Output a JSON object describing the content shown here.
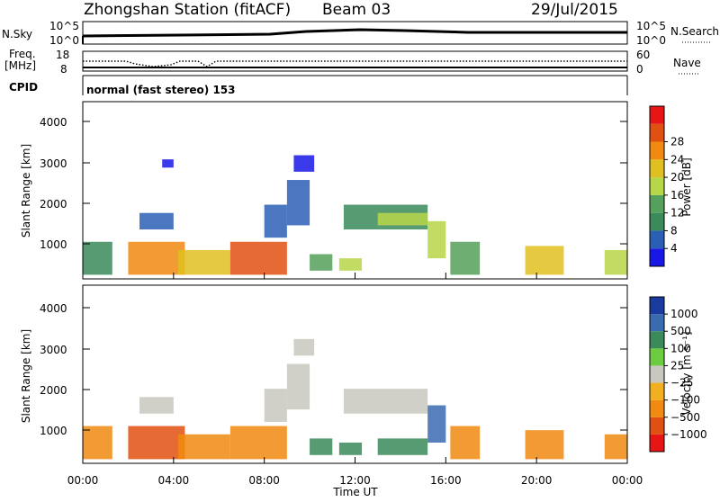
{
  "header": {
    "station": "Zhongshan Station (fitACF)",
    "beam": "Beam 03",
    "date": "29/Jul/2015",
    "cpid_label": "CPID",
    "cpid_text": "normal (fast stereo) 153"
  },
  "strips": {
    "nsky_label": "N.Sky",
    "nsky_ticks": [
      "10^5",
      "10^0"
    ],
    "nsearch_label": "N.Search",
    "nsearch_ticks": [
      "10^5",
      "10^0"
    ],
    "freq_label_1": "Freq.",
    "freq_label_2": "[MHz]",
    "freq_ticks": [
      "18",
      "8"
    ],
    "nave_label": "Nave",
    "nave_ticks": [
      "60",
      "0"
    ]
  },
  "colors": {
    "power": [
      "#1717e6",
      "#2a5fb5",
      "#3a8a5a",
      "#55a05a",
      "#b7d648",
      "#e0c020",
      "#f08a10",
      "#e05010",
      "#e61616"
    ],
    "velocity": [
      "#e61616",
      "#e05010",
      "#f08a10",
      "#f2b020",
      "#c8c8c0",
      "#6ccc40",
      "#3a8a5a",
      "#3a6ab0",
      "#1a3aa0"
    ]
  },
  "chart_data": [
    {
      "type": "heatmap",
      "panel": "power",
      "ylabel": "Slant Range [km]",
      "xlabel": "",
      "ylim": [
        200,
        4500
      ],
      "yticks": [
        "1000",
        "2000",
        "3000",
        "4000"
      ],
      "xlim": [
        "00:00",
        "24:00"
      ],
      "colorbar_label": "Power [dB]",
      "colorbar_ticks": [
        "4",
        "8",
        "12",
        "16",
        "20",
        "24",
        "28"
      ],
      "regions": [
        {
          "t0": 0.0,
          "t1": 1.3,
          "r0": 300,
          "r1": 1100,
          "level": 2
        },
        {
          "t0": 2.0,
          "t1": 4.5,
          "r0": 300,
          "r1": 1100,
          "level": 6
        },
        {
          "t0": 2.5,
          "t1": 4.0,
          "r0": 1400,
          "r1": 1800,
          "level": 1
        },
        {
          "t0": 3.5,
          "t1": 4.0,
          "r0": 2900,
          "r1": 3100,
          "level": 0
        },
        {
          "t0": 4.2,
          "t1": 6.5,
          "r0": 300,
          "r1": 900,
          "level": 5
        },
        {
          "t0": 6.5,
          "t1": 9.0,
          "r0": 300,
          "r1": 1100,
          "level": 7
        },
        {
          "t0": 8.0,
          "t1": 9.0,
          "r0": 1200,
          "r1": 2000,
          "level": 1
        },
        {
          "t0": 9.0,
          "t1": 10.0,
          "r0": 1500,
          "r1": 2600,
          "level": 1
        },
        {
          "t0": 9.3,
          "t1": 10.2,
          "r0": 2800,
          "r1": 3200,
          "level": 0
        },
        {
          "t0": 10.0,
          "t1": 11.0,
          "r0": 400,
          "r1": 800,
          "level": 3
        },
        {
          "t0": 11.3,
          "t1": 12.3,
          "r0": 400,
          "r1": 700,
          "level": 4
        },
        {
          "t0": 11.5,
          "t1": 15.2,
          "r0": 1400,
          "r1": 2000,
          "level": 2
        },
        {
          "t0": 13.0,
          "t1": 15.2,
          "r0": 1500,
          "r1": 1800,
          "level": 4
        },
        {
          "t0": 15.2,
          "t1": 16.0,
          "r0": 700,
          "r1": 1600,
          "level": 4
        },
        {
          "t0": 16.2,
          "t1": 17.5,
          "r0": 300,
          "r1": 1100,
          "level": 3
        },
        {
          "t0": 19.5,
          "t1": 21.2,
          "r0": 300,
          "r1": 1000,
          "level": 5
        },
        {
          "t0": 23.0,
          "t1": 24.0,
          "r0": 300,
          "r1": 900,
          "level": 4
        }
      ]
    },
    {
      "type": "heatmap",
      "panel": "velocity",
      "ylabel": "Slant Range [km]",
      "xlabel": "Time UT",
      "ylim": [
        200,
        4500
      ],
      "yticks": [
        "1000",
        "2000",
        "3000",
        "4000"
      ],
      "xlim": [
        "00:00",
        "24:00"
      ],
      "xticks": [
        "00:00",
        "04:00",
        "08:00",
        "12:00",
        "16:00",
        "20:00",
        "00:00"
      ],
      "colorbar_label": "Velocity [m s⁻¹]",
      "colorbar_ticks": [
        "1000",
        "500",
        "100",
        "25",
        "−25",
        "−100",
        "−500",
        "−1000"
      ],
      "regions": [
        {
          "t0": 0.0,
          "t1": 1.3,
          "r0": 300,
          "r1": 1100,
          "level": 2
        },
        {
          "t0": 2.0,
          "t1": 4.5,
          "r0": 300,
          "r1": 1100,
          "level": 1
        },
        {
          "t0": 2.5,
          "t1": 4.0,
          "r0": 1400,
          "r1": 1800,
          "level": 4
        },
        {
          "t0": 4.2,
          "t1": 6.5,
          "r0": 300,
          "r1": 900,
          "level": 2
        },
        {
          "t0": 6.5,
          "t1": 9.0,
          "r0": 300,
          "r1": 1100,
          "level": 2
        },
        {
          "t0": 8.0,
          "t1": 9.0,
          "r0": 1200,
          "r1": 2000,
          "level": 4
        },
        {
          "t0": 9.0,
          "t1": 10.0,
          "r0": 1500,
          "r1": 2600,
          "level": 4
        },
        {
          "t0": 9.3,
          "t1": 10.2,
          "r0": 2800,
          "r1": 3200,
          "level": 4
        },
        {
          "t0": 10.0,
          "t1": 11.0,
          "r0": 400,
          "r1": 800,
          "level": 6
        },
        {
          "t0": 11.3,
          "t1": 12.3,
          "r0": 400,
          "r1": 700,
          "level": 6
        },
        {
          "t0": 11.5,
          "t1": 15.2,
          "r0": 1400,
          "r1": 2000,
          "level": 4
        },
        {
          "t0": 13.0,
          "t1": 15.2,
          "r0": 400,
          "r1": 800,
          "level": 6
        },
        {
          "t0": 15.2,
          "t1": 16.0,
          "r0": 700,
          "r1": 1600,
          "level": 7
        },
        {
          "t0": 16.2,
          "t1": 17.5,
          "r0": 300,
          "r1": 1100,
          "level": 2
        },
        {
          "t0": 19.5,
          "t1": 21.2,
          "r0": 300,
          "r1": 1000,
          "level": 2
        },
        {
          "t0": 23.0,
          "t1": 24.0,
          "r0": 300,
          "r1": 900,
          "level": 2
        }
      ]
    }
  ]
}
